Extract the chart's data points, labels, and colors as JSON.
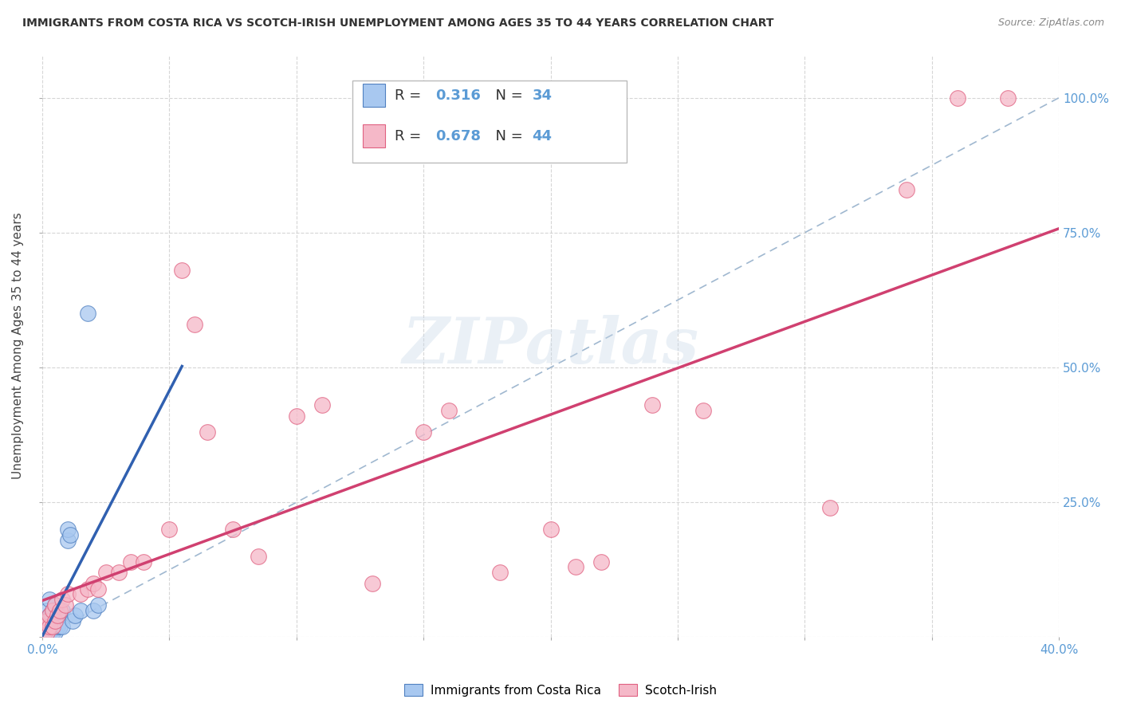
{
  "title": "IMMIGRANTS FROM COSTA RICA VS SCOTCH-IRISH UNEMPLOYMENT AMONG AGES 35 TO 44 YEARS CORRELATION CHART",
  "source": "Source: ZipAtlas.com",
  "ylabel": "Unemployment Among Ages 35 to 44 years",
  "xlim": [
    0.0,
    0.4
  ],
  "ylim": [
    0.0,
    1.05
  ],
  "blue_R": 0.316,
  "blue_N": 34,
  "pink_R": 0.678,
  "pink_N": 44,
  "blue_fill": "#A8C8F0",
  "pink_fill": "#F5B8C8",
  "blue_edge": "#5080C0",
  "pink_edge": "#E06080",
  "blue_line": "#3060B0",
  "pink_line": "#D04070",
  "ref_line": "#A0B8D0",
  "axis_color": "#5B9BD5",
  "background_color": "#FFFFFF",
  "grid_color": "#CCCCCC",
  "watermark": "ZIPatlas",
  "blue_x": [
    0.001,
    0.001,
    0.001,
    0.001,
    0.002,
    0.002,
    0.002,
    0.002,
    0.003,
    0.003,
    0.003,
    0.003,
    0.003,
    0.004,
    0.004,
    0.004,
    0.005,
    0.005,
    0.005,
    0.006,
    0.006,
    0.007,
    0.007,
    0.008,
    0.008,
    0.01,
    0.01,
    0.011,
    0.012,
    0.013,
    0.015,
    0.018,
    0.02,
    0.022
  ],
  "blue_y": [
    0.01,
    0.01,
    0.02,
    0.03,
    0.01,
    0.02,
    0.03,
    0.05,
    0.01,
    0.02,
    0.03,
    0.04,
    0.07,
    0.01,
    0.02,
    0.05,
    0.01,
    0.03,
    0.06,
    0.02,
    0.04,
    0.02,
    0.04,
    0.02,
    0.05,
    0.18,
    0.2,
    0.19,
    0.03,
    0.04,
    0.05,
    0.6,
    0.05,
    0.06
  ],
  "pink_x": [
    0.001,
    0.001,
    0.002,
    0.002,
    0.003,
    0.003,
    0.004,
    0.004,
    0.005,
    0.005,
    0.006,
    0.007,
    0.008,
    0.009,
    0.01,
    0.015,
    0.018,
    0.02,
    0.022,
    0.025,
    0.03,
    0.035,
    0.04,
    0.05,
    0.055,
    0.06,
    0.065,
    0.075,
    0.085,
    0.1,
    0.11,
    0.13,
    0.15,
    0.16,
    0.18,
    0.2,
    0.21,
    0.22,
    0.24,
    0.26,
    0.31,
    0.34,
    0.36,
    0.38
  ],
  "pink_y": [
    0.01,
    0.02,
    0.01,
    0.03,
    0.02,
    0.04,
    0.02,
    0.05,
    0.03,
    0.06,
    0.04,
    0.05,
    0.07,
    0.06,
    0.08,
    0.08,
    0.09,
    0.1,
    0.09,
    0.12,
    0.12,
    0.14,
    0.14,
    0.2,
    0.68,
    0.58,
    0.38,
    0.2,
    0.15,
    0.41,
    0.43,
    0.1,
    0.38,
    0.42,
    0.12,
    0.2,
    0.13,
    0.14,
    0.43,
    0.42,
    0.24,
    0.83,
    1.0,
    1.0
  ]
}
